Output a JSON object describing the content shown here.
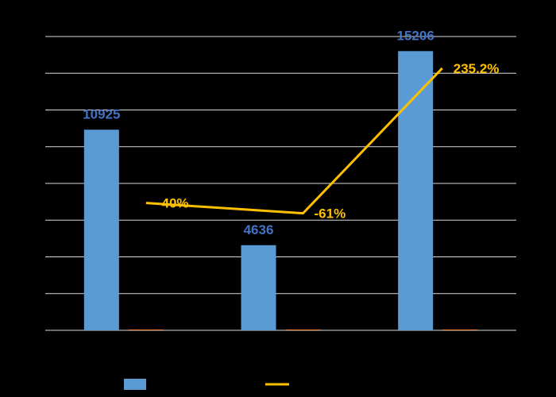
{
  "chart_data": {
    "type": "bar",
    "categories": [
      "",
      "",
      ""
    ],
    "bar_ylim": [
      0,
      16000
    ],
    "line_ylim": [
      -300,
      300
    ],
    "series": [
      {
        "kind": "bar",
        "values": [
          10925,
          4636,
          15206
        ],
        "labels": [
          "10925",
          "4636",
          "15206"
        ],
        "color": "#5B9BD5",
        "label_color": "#4472C4"
      },
      {
        "kind": "bar",
        "values": [
          0,
          0,
          0
        ],
        "color": "#ED7D31"
      },
      {
        "kind": "line",
        "values": [
          -40,
          -61,
          235.2
        ],
        "labels": [
          "-40%",
          "-61%",
          "235.2%"
        ],
        "color": "#FFC000"
      }
    ],
    "grid": true,
    "legend_position": "bottom",
    "legend": [
      {
        "marker": "bar",
        "color": "#5B9BD5",
        "text": ""
      },
      {
        "marker": "line",
        "color": "#FFC000",
        "text": ""
      }
    ]
  }
}
